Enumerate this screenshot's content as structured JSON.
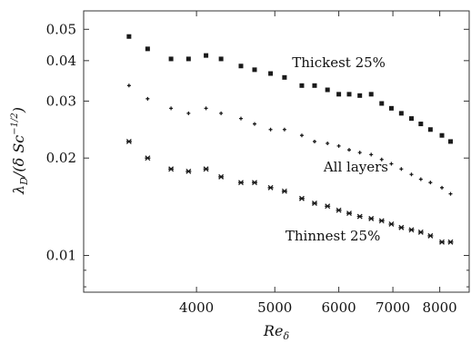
{
  "chart_data": {
    "type": "scatter",
    "xscale": "log",
    "yscale": "log",
    "xlim": [
      2900,
      8700
    ],
    "ylim": [
      0.0077,
      0.057
    ],
    "xticks": [
      4000,
      5000,
      6000,
      7000,
      8000
    ],
    "yticks": [
      0.01,
      0.02,
      0.03,
      0.04,
      0.05
    ],
    "xtick_labels": [
      "4000",
      "5000",
      "6000",
      "7000",
      "8000"
    ],
    "ytick_labels": [
      "0.01",
      "0.02",
      "0.03",
      "0.04",
      "0.05"
    ],
    "xlabel": {
      "main": "Re",
      "sub": "δ"
    },
    "ylabel": {
      "prefix": "λ",
      "sub": "D",
      "body": "/(δ Sc",
      "sup": "−1/2",
      "suffix": ")"
    },
    "grid": false,
    "series": [
      {
        "name": "Thickest 25%",
        "marker": "square",
        "x": [
          3300,
          3480,
          3720,
          3910,
          4110,
          4290,
          4540,
          4720,
          4940,
          5140,
          5400,
          5600,
          5810,
          6000,
          6180,
          6370,
          6580,
          6780,
          6970,
          7170,
          7380,
          7580,
          7790,
          8050,
          8250
        ],
        "y": [
          0.0475,
          0.0435,
          0.0405,
          0.0405,
          0.0415,
          0.0405,
          0.0385,
          0.0375,
          0.0365,
          0.0355,
          0.0335,
          0.0335,
          0.0325,
          0.0315,
          0.0315,
          0.0312,
          0.0315,
          0.0295,
          0.0285,
          0.0275,
          0.0265,
          0.0255,
          0.0245,
          0.0235,
          0.0225
        ]
      },
      {
        "name": "All layers",
        "marker": "cross",
        "x": [
          3300,
          3480,
          3720,
          3910,
          4110,
          4290,
          4540,
          4720,
          4940,
          5140,
          5400,
          5600,
          5810,
          6000,
          6180,
          6370,
          6580,
          6780,
          6970,
          7170,
          7380,
          7580,
          7790,
          8050,
          8250
        ],
        "y": [
          0.0335,
          0.0305,
          0.0285,
          0.0275,
          0.0285,
          0.0275,
          0.0265,
          0.0255,
          0.0245,
          0.0245,
          0.0235,
          0.0225,
          0.0222,
          0.0218,
          0.0212,
          0.0208,
          0.0205,
          0.0198,
          0.0192,
          0.0185,
          0.0178,
          0.0172,
          0.0168,
          0.0162,
          0.0155
        ]
      },
      {
        "name": "Thinnest 25%",
        "marker": "star",
        "x": [
          3300,
          3480,
          3720,
          3910,
          4110,
          4290,
          4540,
          4720,
          4940,
          5140,
          5400,
          5600,
          5810,
          6000,
          6180,
          6370,
          6580,
          6780,
          6970,
          7170,
          7380,
          7580,
          7790,
          8050,
          8250
        ],
        "y": [
          0.0225,
          0.02,
          0.0185,
          0.0182,
          0.0185,
          0.0175,
          0.0168,
          0.0168,
          0.0162,
          0.0158,
          0.015,
          0.0145,
          0.0142,
          0.0138,
          0.0135,
          0.0132,
          0.013,
          0.0128,
          0.0125,
          0.0122,
          0.012,
          0.0118,
          0.0115,
          0.011,
          0.011
        ]
      }
    ],
    "annotations": [
      {
        "text": "Thickest 25%",
        "x": 6000,
        "y": 0.0395,
        "series": "Thickest 25%"
      },
      {
        "text": "All layers",
        "x": 6300,
        "y": 0.0188,
        "series": "All layers"
      },
      {
        "text": "Thinnest 25%",
        "x": 5900,
        "y": 0.0115,
        "series": "Thinnest 25%"
      }
    ]
  },
  "colors": {
    "marker": "#1a1a1a",
    "axis": "#333333",
    "text": "#111111"
  }
}
